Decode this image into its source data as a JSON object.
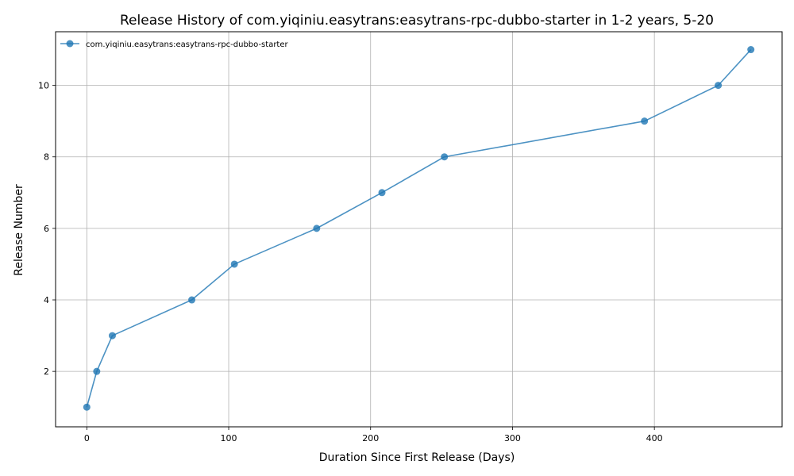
{
  "chart_data": {
    "type": "line",
    "title": "Release History of com.yiqiniu.easytrans:easytrans-rpc-dubbo-starter in 1-2 years, 5-20",
    "xlabel": "Duration Since First Release (Days)",
    "ylabel": "Release Number",
    "xlim": [
      -22,
      490
    ],
    "ylim": [
      0.45,
      11.5
    ],
    "xticks": [
      0,
      100,
      200,
      300,
      400
    ],
    "yticks": [
      2,
      4,
      6,
      8,
      10
    ],
    "grid": true,
    "legend_position": "top-left",
    "series": [
      {
        "name": "com.yiqiniu.easytrans:easytrans-rpc-dubbo-starter",
        "color": "#1f77b4",
        "marker": "circle",
        "x": [
          0,
          7,
          18,
          74,
          104,
          162,
          208,
          252,
          393,
          445,
          468
        ],
        "y": [
          1,
          2,
          3,
          4,
          5,
          6,
          7,
          8,
          9,
          10,
          11
        ]
      }
    ]
  }
}
